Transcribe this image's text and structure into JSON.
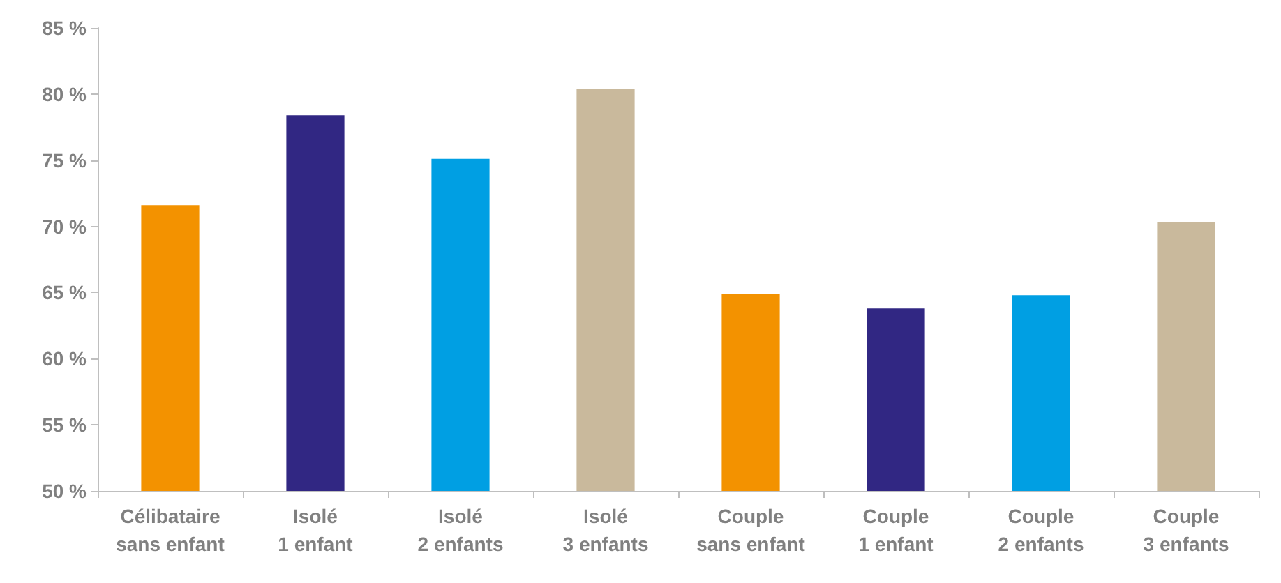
{
  "chart_data": {
    "type": "bar",
    "categories": [
      "Célibataire\nsans enfant",
      "Isolé\n1 enfant",
      "Isolé\n2 enfants",
      "Isolé\n3 enfants",
      "Couple\nsans enfant",
      "Couple\n1 enfant",
      "Couple\n2 enfants",
      "Couple\n3 enfants"
    ],
    "values": [
      71.6,
      78.4,
      75.1,
      80.4,
      64.9,
      63.8,
      64.8,
      70.3
    ],
    "colors": [
      "#f39200",
      "#312783",
      "#009fe3",
      "#c9b99c",
      "#f39200",
      "#312783",
      "#009fe3",
      "#c9b99c"
    ],
    "ylim": [
      50,
      85
    ],
    "yticks": [
      {
        "value": 50,
        "label": "50 %"
      },
      {
        "value": 55,
        "label": "55 %"
      },
      {
        "value": 60,
        "label": "60 %"
      },
      {
        "value": 65,
        "label": "65 %"
      },
      {
        "value": 70,
        "label": "70 %"
      },
      {
        "value": 75,
        "label": "75 %"
      },
      {
        "value": 80,
        "label": "80 %"
      },
      {
        "value": 85,
        "label": "85 %"
      }
    ],
    "grid": false
  }
}
